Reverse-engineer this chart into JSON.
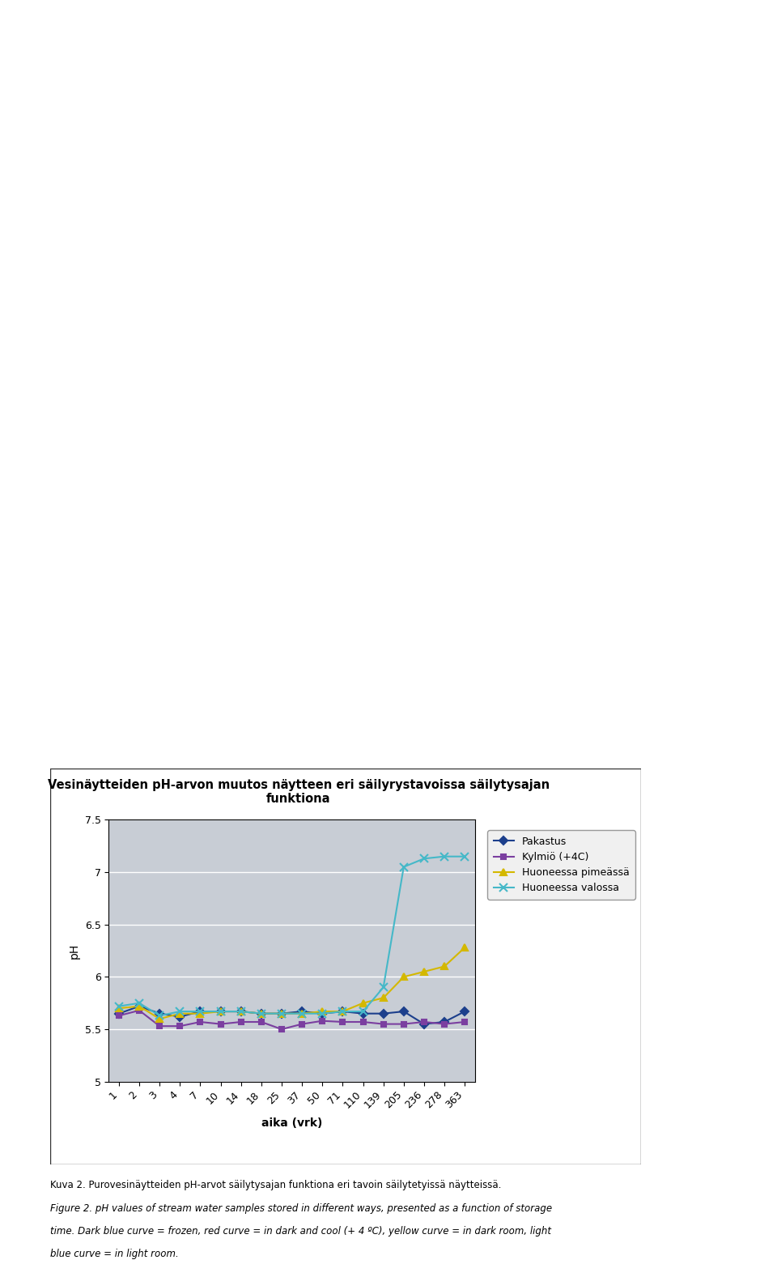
{
  "title_line1": "Vesinäytteiden pH-arvon muutos näytteen eri säilyrystavoissa säilytysajan",
  "title_line2": "funktiona",
  "xlabel": "aika (vrk)",
  "ylabel": "pH",
  "x_ticks": [
    1,
    2,
    3,
    4,
    7,
    10,
    14,
    18,
    25,
    37,
    50,
    71,
    110,
    139,
    205,
    236,
    278,
    363
  ],
  "ylim": [
    5.0,
    7.5
  ],
  "yticks": [
    5.0,
    5.5,
    6.0,
    6.5,
    7.0,
    7.5
  ],
  "series": [
    {
      "name": "Pakastus",
      "color": "#1C3F8C",
      "marker": "D",
      "markersize": 5,
      "linewidth": 1.5,
      "values": [
        5.65,
        5.72,
        5.65,
        5.62,
        5.67,
        5.67,
        5.67,
        5.65,
        5.65,
        5.67,
        5.65,
        5.67,
        5.65,
        5.65,
        5.67,
        5.55,
        5.57,
        5.67
      ]
    },
    {
      "name": "Kylmiö (+4C)",
      "color": "#7B3FA0",
      "marker": "s",
      "markersize": 5,
      "linewidth": 1.5,
      "values": [
        5.63,
        5.68,
        5.53,
        5.53,
        5.57,
        5.55,
        5.57,
        5.57,
        5.5,
        5.55,
        5.58,
        5.57,
        5.57,
        5.55,
        5.55,
        5.57,
        5.55,
        5.57
      ]
    },
    {
      "name": "Huoneessa pimeässä",
      "color": "#D4B800",
      "marker": "^",
      "markersize": 6,
      "linewidth": 1.5,
      "values": [
        5.7,
        5.72,
        5.6,
        5.65,
        5.65,
        5.67,
        5.67,
        5.65,
        5.65,
        5.65,
        5.67,
        5.67,
        5.75,
        5.8,
        6.0,
        6.05,
        6.1,
        6.28
      ]
    },
    {
      "name": "Huoneessa valossa",
      "color": "#45B8C8",
      "marker": "x",
      "markersize": 7,
      "linewidth": 1.5,
      "values": [
        5.72,
        5.75,
        5.63,
        5.67,
        5.67,
        5.67,
        5.67,
        5.65,
        5.65,
        5.65,
        5.65,
        5.67,
        5.67,
        5.9,
        7.05,
        7.13,
        7.15,
        7.15
      ]
    }
  ],
  "plot_bg_color": "#C8CDD5",
  "fig_bg_color": "#FFFFFF",
  "outer_bg_color": "#FFFFFF",
  "grid_color": "#FFFFFF",
  "title_fontsize": 10.5,
  "axis_label_fontsize": 10,
  "tick_fontsize": 9,
  "legend_fontsize": 9,
  "caption1": "Kuva 2. Purovesinäytteiden pH-arvot säilytysajan funktiona eri tavoin säilytetyissä näytteissä.",
  "caption2": "Figure 2. pH values of stream water samples stored in different ways, presented as a function of storage",
  "caption3": "time. Dark blue curve = frozen, red curve = in dark and cool (+ 4 ºC), yellow curve = in dark room, light",
  "caption4": "blue curve = in light room."
}
